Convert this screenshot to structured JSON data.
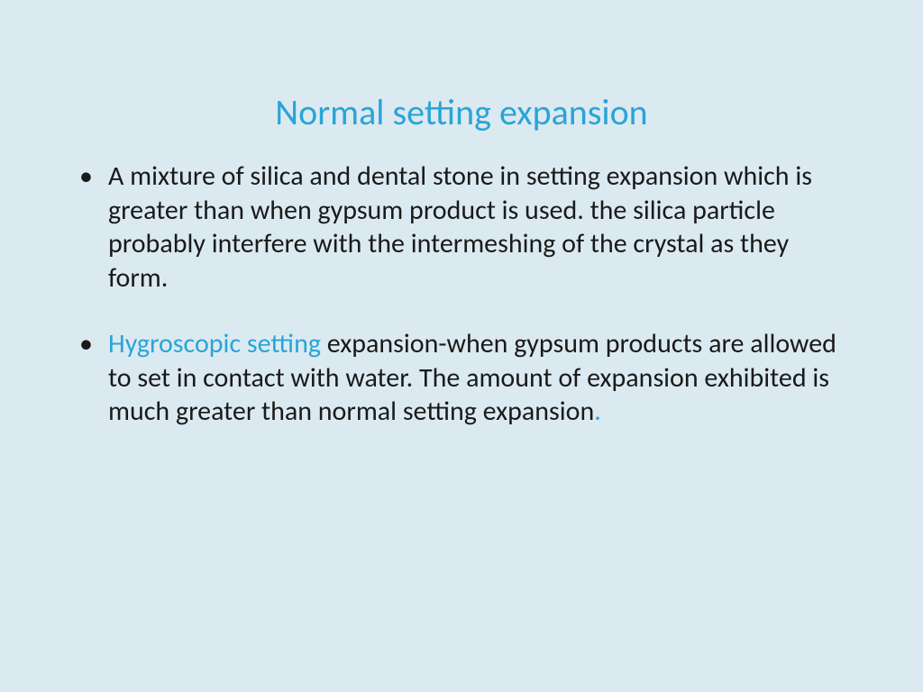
{
  "slide": {
    "background_color": "#dbeaf1",
    "title": {
      "text": "Normal  setting expansion",
      "color": "#2aa4d8",
      "fontsize": 40
    },
    "body": {
      "color": "#1a1a1a",
      "accent_color": "#2aa4d8",
      "fontsize": 30,
      "bullets": [
        {
          "segments": [
            {
              "text": "A mixture of silica and dental stone  in setting expansion which is greater than  when gypsum product is used. the silica particle probably interfere with the intermeshing of the crystal as they form.",
              "accent": false
            }
          ]
        },
        {
          "segments": [
            {
              "text": " Hygroscopic setting ",
              "accent": true
            },
            {
              "text": "expansion-when gypsum products are allowed to set in contact with water. The amount of expansion exhibited is much greater than normal setting expansion",
              "accent": false
            },
            {
              "text": ".",
              "accent": true
            }
          ]
        }
      ]
    }
  }
}
